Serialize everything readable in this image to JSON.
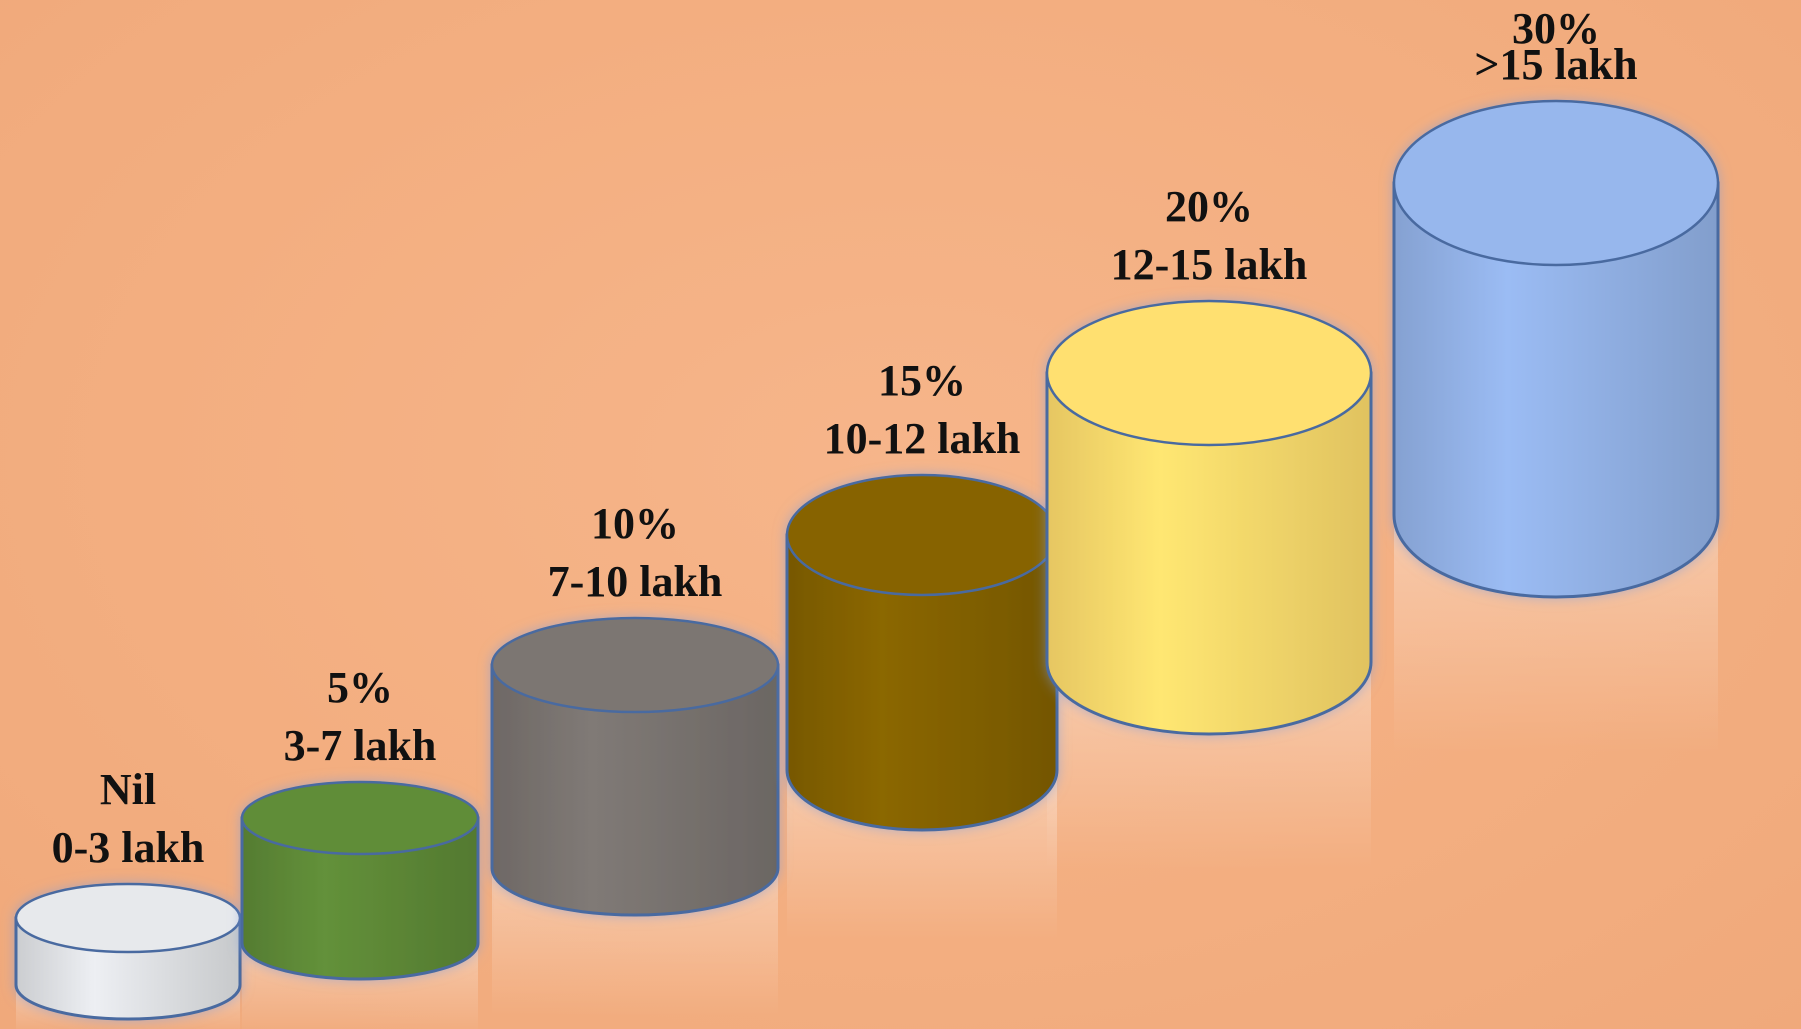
{
  "chart_data": {
    "type": "bar",
    "style": "3d-cylinder-steps",
    "categories": [
      "0-3 lakh",
      "3-7 lakh",
      "7-10 lakh",
      "10-12 lakh",
      "12-15 lakh",
      ">15 lakh"
    ],
    "rate_labels": [
      "Nil",
      "5%",
      "10%",
      "15%",
      "20%",
      "30%"
    ],
    "values": [
      0,
      5,
      10,
      15,
      20,
      30
    ],
    "colors": [
      "#e2e4e7",
      "#5e8a37",
      "#7a7470",
      "#846201",
      "#ffdc6d",
      "#94b3e8"
    ],
    "outline_color": "#4a6aa0",
    "grid": false,
    "legend": "none"
  }
}
